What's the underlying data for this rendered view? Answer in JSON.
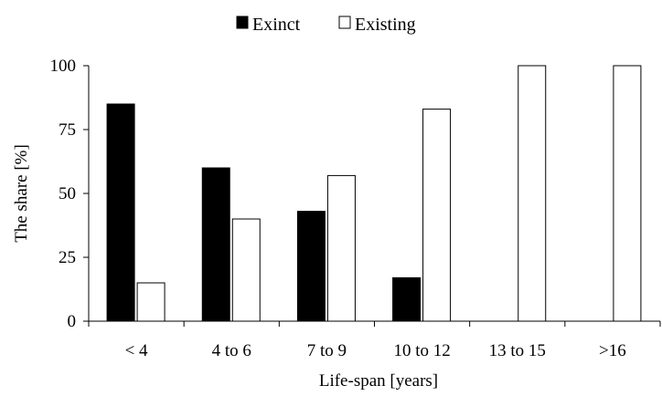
{
  "chart_data": {
    "type": "bar",
    "categories": [
      "< 4",
      "4 to 6",
      "7 to 9",
      "10 to 12",
      "13 to 15",
      ">16"
    ],
    "series": [
      {
        "name": "Exinct",
        "values": [
          85,
          60,
          43,
          17,
          0,
          0
        ],
        "color": "#000000"
      },
      {
        "name": "Existing",
        "values": [
          15,
          40,
          57,
          83,
          100,
          100
        ],
        "color": "#ffffff"
      }
    ],
    "xlabel": "Life-span [years]",
    "ylabel": "The share [%]",
    "ylim": [
      0,
      100
    ],
    "yticks": [
      0,
      25,
      50,
      75,
      100
    ],
    "grid": false,
    "legend_position": "top"
  }
}
